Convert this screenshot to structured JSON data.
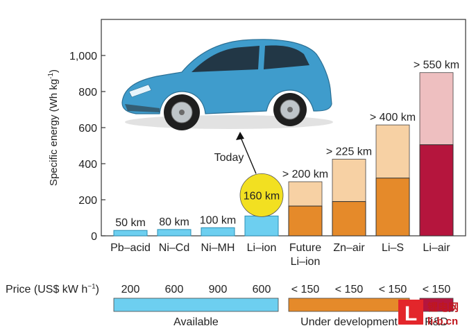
{
  "chart_data": {
    "type": "bar",
    "stacked": true,
    "ylabel": "Specific energy (Wh kg",
    "ylabel_sup": "-1",
    "ylabel_close": ")",
    "ylim": [
      0,
      1200
    ],
    "yticks": [
      0,
      200,
      400,
      600,
      800,
      1000
    ],
    "ytick_labels": [
      "0",
      "200",
      "400",
      "600",
      "800",
      "1,000"
    ],
    "grid": false,
    "categories": [
      {
        "lines": [
          "Pb–acid"
        ]
      },
      {
        "lines": [
          "Ni–Cd"
        ]
      },
      {
        "lines": [
          "Ni–MH"
        ]
      },
      {
        "lines": [
          "Li–ion"
        ]
      },
      {
        "lines": [
          "Future",
          "Li–ion"
        ]
      },
      {
        "lines": [
          "Zn–air"
        ]
      },
      {
        "lines": [
          "Li–S"
        ]
      },
      {
        "lines": [
          "Li–air"
        ]
      }
    ],
    "bars": [
      {
        "low": 30,
        "high": 30,
        "range_label": "50 km",
        "group": "available"
      },
      {
        "low": 35,
        "high": 35,
        "range_label": "80 km",
        "group": "available"
      },
      {
        "low": 45,
        "high": 45,
        "range_label": "100 km",
        "group": "available"
      },
      {
        "low": 110,
        "high": 110,
        "range_label": "160 km",
        "group": "available"
      },
      {
        "low": 165,
        "high": 300,
        "range_label": "> 200 km",
        "group": "development"
      },
      {
        "low": 190,
        "high": 425,
        "range_label": "> 225 km",
        "group": "development"
      },
      {
        "low": 320,
        "high": 615,
        "range_label": "> 400 km",
        "group": "development"
      },
      {
        "low": 505,
        "high": 905,
        "range_label": "> 550 km",
        "group": "research"
      }
    ],
    "today_label": "Today",
    "price": {
      "label": "Price (US$ kW h",
      "label_sup": "−1",
      "label_close": ")",
      "values": [
        "200",
        "600",
        "900",
        "600",
        "< 150",
        "< 150",
        "< 150",
        "< 150"
      ]
    },
    "groups": [
      {
        "name": "Available",
        "from": 0,
        "to": 3
      },
      {
        "name": "Under development",
        "from": 4,
        "to": 6
      },
      {
        "name": "R&D",
        "from": 7,
        "to": 7
      }
    ],
    "colors": {
      "available": "#6dcff0",
      "available_edge": "#2b8fb5",
      "development_low": "#e58a2a",
      "development_high": "#f7d1a4",
      "research_low": "#b5153d",
      "research_high": "#eebfc0",
      "highlight": "#f2e021",
      "car_body": "#3f9ccc"
    }
  },
  "watermark": {
    "icon_letter": "L",
    "line1": "锂电网",
    "line2": "li-b.cn"
  }
}
